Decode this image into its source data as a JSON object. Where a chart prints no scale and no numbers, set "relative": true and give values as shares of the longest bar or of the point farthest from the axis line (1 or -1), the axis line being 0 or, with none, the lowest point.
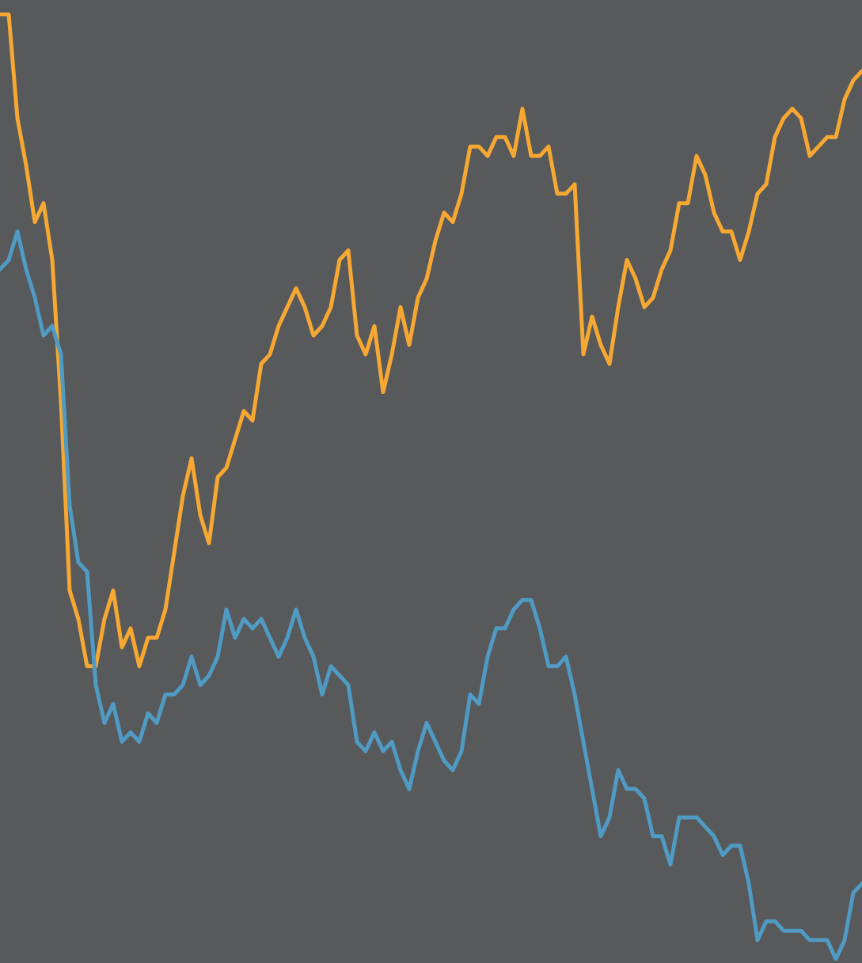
{
  "chart_data": {
    "type": "line",
    "relative": true,
    "tick_labels": false,
    "marker": "none",
    "line_style": "solid",
    "categories": [
      null,
      null,
      null,
      null,
      null,
      null,
      null,
      null,
      null,
      null,
      null,
      null,
      null,
      null,
      null,
      null,
      null,
      null,
      null,
      null,
      null,
      null,
      null,
      null,
      null,
      null,
      null,
      null,
      null,
      null,
      null,
      null,
      null,
      null,
      null,
      null,
      null,
      null,
      null,
      null,
      null,
      null,
      null,
      null,
      null,
      null,
      null,
      null,
      null,
      null,
      null,
      null,
      null,
      null,
      null,
      null,
      null,
      null,
      null,
      null,
      null,
      null,
      null,
      null,
      null,
      null,
      null,
      null,
      null,
      null,
      null,
      null,
      null,
      null,
      null,
      null,
      null,
      null,
      null,
      null,
      null,
      null,
      null,
      null,
      null,
      null,
      null,
      null,
      null,
      null,
      null,
      null,
      null,
      null,
      null,
      null,
      null,
      null,
      null,
      null
    ],
    "series": [
      {
        "color": "#f6a833",
        "values": [
          1.0,
          1.0,
          0.89,
          0.84,
          0.78,
          0.8,
          0.74,
          0.59,
          0.39,
          0.36,
          0.31,
          0.31,
          0.36,
          0.39,
          0.33,
          0.35,
          0.31,
          0.34,
          0.34,
          0.37,
          0.43,
          0.49,
          0.53,
          0.47,
          0.44,
          0.51,
          0.52,
          0.55,
          0.58,
          0.57,
          0.63,
          0.64,
          0.67,
          0.69,
          0.71,
          0.69,
          0.66,
          0.67,
          0.69,
          0.74,
          0.75,
          0.66,
          0.64,
          0.67,
          0.6,
          0.64,
          0.69,
          0.65,
          0.7,
          0.72,
          0.76,
          0.79,
          0.78,
          0.81,
          0.86,
          0.86,
          0.85,
          0.87,
          0.87,
          0.85,
          0.9,
          0.85,
          0.85,
          0.86,
          0.81,
          0.81,
          0.82,
          0.64,
          0.68,
          0.65,
          0.63,
          0.69,
          0.74,
          0.72,
          0.69,
          0.7,
          0.73,
          0.75,
          0.8,
          0.8,
          0.85,
          0.83,
          0.79,
          0.77,
          0.77,
          0.74,
          0.77,
          0.81,
          0.82,
          0.87,
          0.89,
          0.9,
          0.89,
          0.85,
          0.86,
          0.87,
          0.87,
          0.91,
          0.93,
          0.94
        ]
      },
      {
        "color": "#4f9bc4",
        "values": [
          0.73,
          0.74,
          0.77,
          0.73,
          0.7,
          0.66,
          0.67,
          0.64,
          0.48,
          0.42,
          0.41,
          0.29,
          0.25,
          0.27,
          0.23,
          0.24,
          0.23,
          0.26,
          0.25,
          0.28,
          0.28,
          0.29,
          0.32,
          0.29,
          0.3,
          0.32,
          0.37,
          0.34,
          0.36,
          0.35,
          0.36,
          0.34,
          0.32,
          0.34,
          0.37,
          0.34,
          0.32,
          0.28,
          0.31,
          0.3,
          0.29,
          0.23,
          0.22,
          0.24,
          0.22,
          0.23,
          0.2,
          0.18,
          0.22,
          0.25,
          0.23,
          0.21,
          0.2,
          0.22,
          0.28,
          0.27,
          0.32,
          0.35,
          0.35,
          0.37,
          0.38,
          0.38,
          0.35,
          0.31,
          0.31,
          0.32,
          0.28,
          0.23,
          0.18,
          0.13,
          0.15,
          0.2,
          0.18,
          0.18,
          0.17,
          0.13,
          0.13,
          0.1,
          0.15,
          0.15,
          0.15,
          0.14,
          0.13,
          0.11,
          0.12,
          0.12,
          0.08,
          0.02,
          0.04,
          0.04,
          0.03,
          0.03,
          0.03,
          0.02,
          0.02,
          0.02,
          0,
          0.02,
          0.07,
          0.08
        ]
      }
    ]
  }
}
